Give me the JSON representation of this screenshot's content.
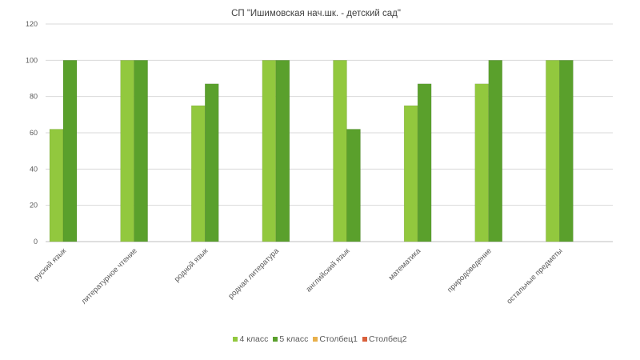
{
  "chart_data": {
    "type": "bar",
    "title": "СП \"Ишимовская нач.шк. - детский сад\"",
    "xlabel": "",
    "ylabel": "",
    "ylim": [
      0,
      120
    ],
    "yticks": [
      0,
      20,
      40,
      60,
      80,
      100,
      120
    ],
    "grid": true,
    "legend_position": "bottom",
    "categories": [
      "руский язык",
      "литературное чтение",
      "родной язык",
      "родная литература",
      "английский язык",
      "математика",
      "природоведение",
      "остальные предметы"
    ],
    "series": [
      {
        "name": "4 класс",
        "color": "#92c83e",
        "values": [
          62,
          100,
          75,
          100,
          100,
          75,
          87,
          100
        ]
      },
      {
        "name": "5 класс",
        "color": "#5aa02c",
        "values": [
          100,
          100,
          87,
          100,
          62,
          87,
          100,
          100
        ]
      },
      {
        "name": "Столбец1",
        "color": "#e8b04b",
        "values": [
          null,
          null,
          null,
          null,
          null,
          null,
          null,
          null
        ]
      },
      {
        "name": "Столбец2",
        "color": "#d9603b",
        "values": [
          null,
          null,
          null,
          null,
          null,
          null,
          null,
          null
        ]
      }
    ]
  }
}
